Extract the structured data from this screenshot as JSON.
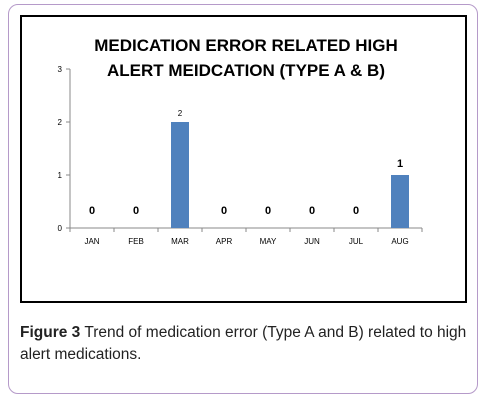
{
  "caption": {
    "label": "Figure 3",
    "text": "Trend of medication error (Type A and B) related to high alert medications."
  },
  "chart_data": {
    "type": "bar",
    "title_lines": [
      "MEDICATION ERROR RELATED HIGH",
      "ALERT MEIDCATION (TYPE A & B)"
    ],
    "categories": [
      "JAN",
      "FEB",
      "MAR",
      "APR",
      "MAY",
      "JUN",
      "JUL",
      "AUG"
    ],
    "values": [
      0,
      0,
      2,
      0,
      0,
      0,
      0,
      1
    ],
    "value_labels": [
      "0",
      "0",
      "2",
      "0",
      "0",
      "0",
      "0",
      "1"
    ],
    "yticks": [
      "0",
      "1",
      "2",
      "3"
    ],
    "ylim": [
      0,
      3
    ],
    "xlabel": "",
    "ylabel": "",
    "grid": false,
    "legend": "none",
    "bar_color": "#4f81bd"
  }
}
